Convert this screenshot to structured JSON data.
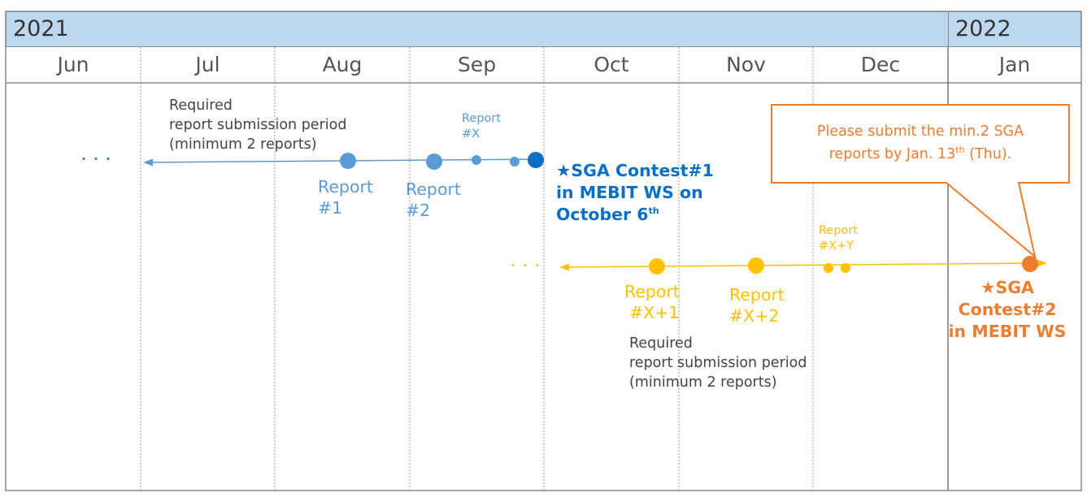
{
  "header": {
    "years": [
      {
        "label": "2021"
      },
      {
        "label": "2022"
      }
    ],
    "months": [
      "Jun",
      "Jul",
      "Aug",
      "Sep",
      "Oct",
      "Nov",
      "Dec",
      "Jan"
    ]
  },
  "colors": {
    "blue_line": "#5b9bd5",
    "blue_dark": "#0b6fc4",
    "yellow": "#ffc000",
    "orange": "#ed7d31",
    "header_bg": "#bdd7ee"
  },
  "track1": {
    "ellipsis": "・・・",
    "required_period": [
      "Required",
      "report submission period",
      "(minimum 2 reports)"
    ],
    "report_1": [
      "Report",
      "#1"
    ],
    "report_2": [
      "Report",
      "#2"
    ],
    "report_x": [
      "Report",
      "#X"
    ],
    "contest": {
      "star": "★",
      "line1": "SGA Contest#1",
      "line2": "in MEBIT WS on",
      "line3_prefix": "October 6",
      "line3_sup": "th"
    }
  },
  "track2": {
    "ellipsis": "・・・",
    "report_x_y": [
      "Report",
      "#X+Y"
    ],
    "report_x_1": [
      "Report",
      "#X+1"
    ],
    "report_x_2": [
      "Report",
      "#X+2"
    ],
    "required_period": [
      "Required",
      "report submission period",
      "(minimum 2 reports)"
    ],
    "contest": {
      "line1": "★SGA",
      "line2": "Contest#2",
      "line3": "in MEBIT WS"
    }
  },
  "callout": {
    "line1": "Please submit the min.2 SGA",
    "line2_prefix": "reports by Jan. 13",
    "line2_sup": "th",
    "line2_suffix": " (Thu)."
  }
}
